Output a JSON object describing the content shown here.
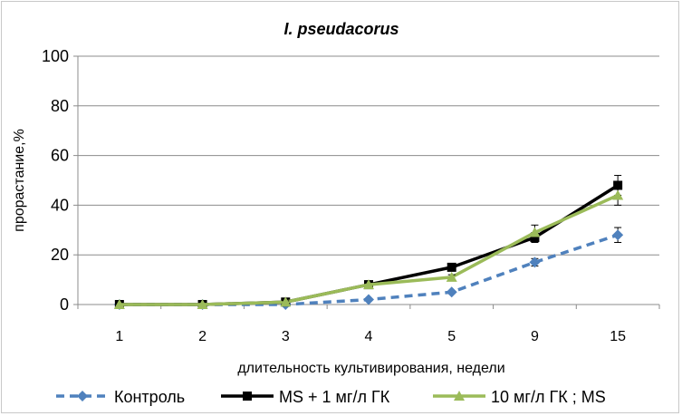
{
  "chart_data": {
    "type": "line",
    "title": "I. pseudacorus",
    "xlabel": "длительность культивирования, недели",
    "ylabel": "прорастание,%",
    "categories": [
      "1",
      "2",
      "3",
      "4",
      "5",
      "9",
      "15"
    ],
    "ylim": [
      0,
      100
    ],
    "yticks": [
      0,
      20,
      40,
      60,
      80,
      100
    ],
    "grid": "horizontal",
    "legend_position": "bottom",
    "series": [
      {
        "name": "Контроль",
        "color": "#4f81bd",
        "line_style": "dashed",
        "marker": "diamond",
        "values": [
          0,
          0,
          0,
          2,
          5,
          17,
          28
        ],
        "errors": [
          0,
          0,
          0,
          0.5,
          0.5,
          1.5,
          3
        ]
      },
      {
        "name": "MS + 1 мг/л ГК",
        "color": "#000000",
        "line_style": "solid",
        "marker": "square",
        "values": [
          0,
          0,
          1,
          8,
          15,
          27,
          48
        ],
        "errors": [
          0,
          0,
          0.5,
          1,
          1,
          2,
          4
        ]
      },
      {
        "name": "10 мг/л ГК ; MS",
        "color": "#9bbb59",
        "line_style": "solid",
        "marker": "triangle",
        "values": [
          0,
          0,
          1,
          8,
          11,
          29,
          44
        ],
        "errors": [
          0,
          0,
          0.5,
          1,
          1,
          3,
          4
        ]
      }
    ]
  }
}
